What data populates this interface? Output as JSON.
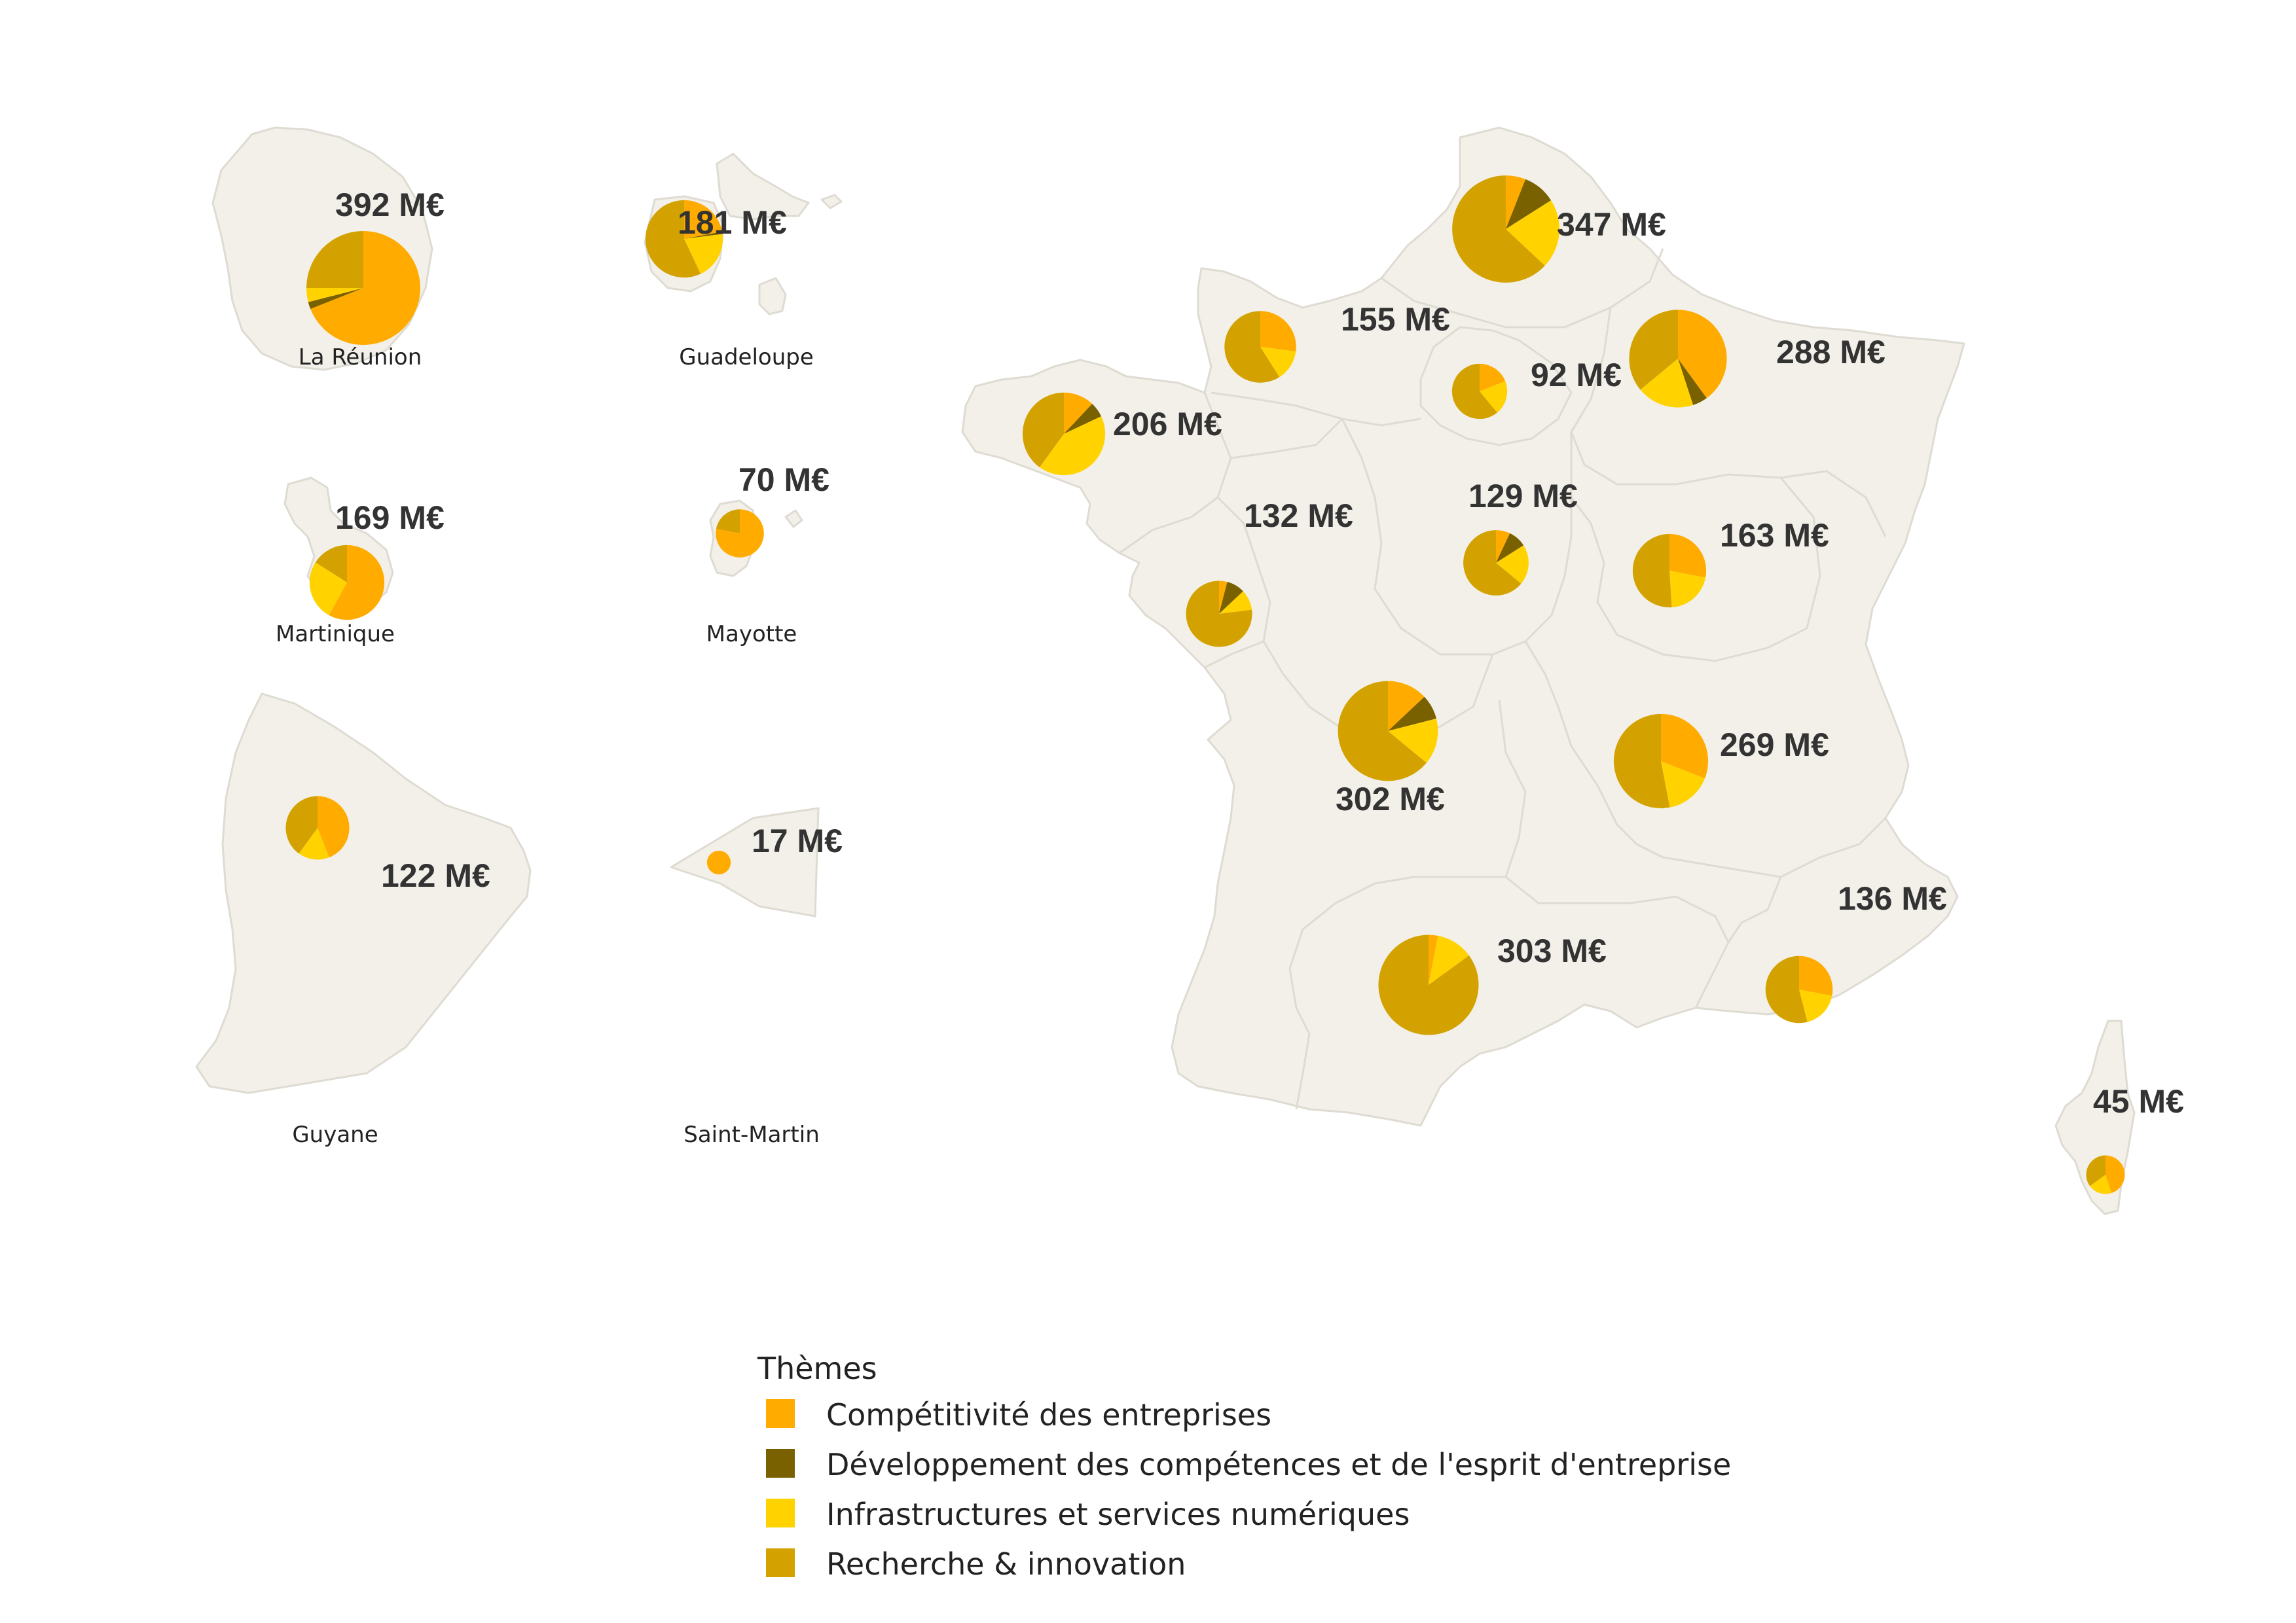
{
  "colors": {
    "competitivite": "#ffab00",
    "competences": "#7a6100",
    "numerique": "#ffd200",
    "recherche": "#d4a200",
    "land": "#f2f0e9",
    "border": "#dedbd2"
  },
  "legend": {
    "title": "Thèmes",
    "items": [
      {
        "key": "competitivite",
        "label": "Compétitivité des entreprises"
      },
      {
        "key": "competences",
        "label": "Développement des compétences et de l'esprit d'entreprise"
      },
      {
        "key": "numerique",
        "label": "Infrastructures et services numériques"
      },
      {
        "key": "recherche",
        "label": "Recherche & innovation"
      }
    ]
  },
  "territories": [
    {
      "name": "La Réunion",
      "amount": "392 M€",
      "value": 392
    },
    {
      "name": "Guadeloupe",
      "amount": "181 M€",
      "value": 181
    },
    {
      "name": "Martinique",
      "amount": "169 M€",
      "value": 169
    },
    {
      "name": "Mayotte",
      "amount": "70 M€",
      "value": 70
    },
    {
      "name": "Guyane",
      "amount": "122 M€",
      "value": 122
    },
    {
      "name": "Saint-Martin",
      "amount": "17 M€",
      "value": 17
    },
    {
      "name": "",
      "amount": "347 M€",
      "value": 347
    },
    {
      "name": "",
      "amount": "155 M€",
      "value": 155
    },
    {
      "name": "",
      "amount": "92 M€",
      "value": 92
    },
    {
      "name": "",
      "amount": "288 M€",
      "value": 288
    },
    {
      "name": "",
      "amount": "206 M€",
      "value": 206
    },
    {
      "name": "",
      "amount": "132 M€",
      "value": 132
    },
    {
      "name": "",
      "amount": "129 M€",
      "value": 129
    },
    {
      "name": "",
      "amount": "163 M€",
      "value": 163
    },
    {
      "name": "",
      "amount": "302 M€",
      "value": 302
    },
    {
      "name": "",
      "amount": "269 M€",
      "value": 269
    },
    {
      "name": "",
      "amount": "303 M€",
      "value": 303
    },
    {
      "name": "",
      "amount": "136 M€",
      "value": 136
    },
    {
      "name": "",
      "amount": "45 M€",
      "value": 45
    }
  ],
  "chart_data": {
    "type": "pie",
    "series_keys": [
      "competitivite",
      "competences",
      "numerique",
      "recherche"
    ],
    "series": [
      "Compétitivité des entreprises",
      "Développement des compétences et de l'esprit d'entreprise",
      "Infrastructures et services numériques",
      "Recherche & innovation"
    ],
    "shares": [
      [
        0.69,
        0.02,
        0.04,
        0.25
      ],
      [
        0.22,
        0.01,
        0.2,
        0.57
      ],
      [
        0.58,
        0.0,
        0.26,
        0.16
      ],
      [
        0.78,
        0.0,
        0.0,
        0.22
      ],
      [
        0.44,
        0.0,
        0.16,
        0.4
      ],
      [
        1.0,
        0.0,
        0.0,
        0.0
      ],
      [
        0.06,
        0.1,
        0.21,
        0.63
      ],
      [
        0.27,
        0.0,
        0.14,
        0.59
      ],
      [
        0.19,
        0.0,
        0.2,
        0.61
      ],
      [
        0.4,
        0.05,
        0.19,
        0.36
      ],
      [
        0.12,
        0.06,
        0.42,
        0.4
      ],
      [
        0.04,
        0.09,
        0.1,
        0.77
      ],
      [
        0.07,
        0.09,
        0.2,
        0.64
      ],
      [
        0.28,
        0.0,
        0.21,
        0.51
      ],
      [
        0.13,
        0.08,
        0.15,
        0.64
      ],
      [
        0.31,
        0.0,
        0.16,
        0.53
      ],
      [
        0.03,
        0.0,
        0.12,
        0.85
      ],
      [
        0.28,
        0.0,
        0.18,
        0.54
      ],
      [
        0.45,
        0.0,
        0.2,
        0.35
      ]
    ]
  }
}
